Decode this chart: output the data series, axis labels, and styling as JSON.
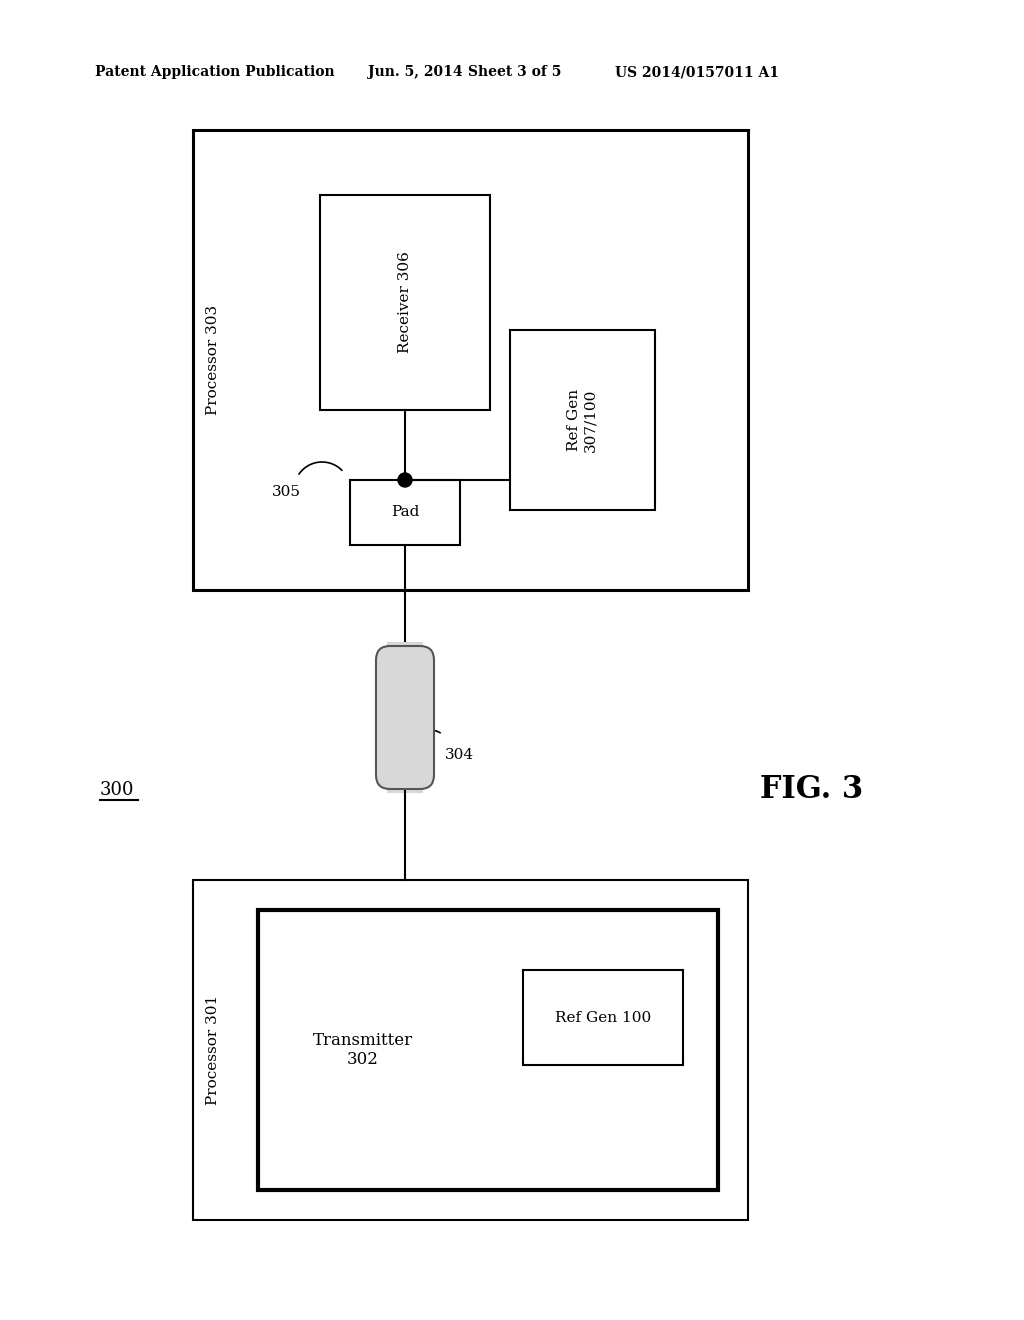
{
  "bg_color": "#ffffff",
  "header_text": "Patent Application Publication",
  "header_date": "Jun. 5, 2014",
  "header_sheet": "Sheet 3 of 5",
  "header_patent": "US 2014/0157011 A1",
  "fig_label": "FIG. 3",
  "system_label": "300",
  "processor303_label": "Processor 303",
  "processor301_label": "Processor 301",
  "receiver_label": "Receiver 306",
  "refgen307_label": "Ref Gen\n307/100",
  "pad_label": "Pad",
  "label305": "305",
  "label304": "304",
  "transmitter_label": "Transmitter\n302",
  "refgen100_label": "Ref Gen 100",
  "header_fontsize": 10,
  "label_fontsize": 11,
  "fig3_fontsize": 22,
  "system300_fontsize": 13
}
